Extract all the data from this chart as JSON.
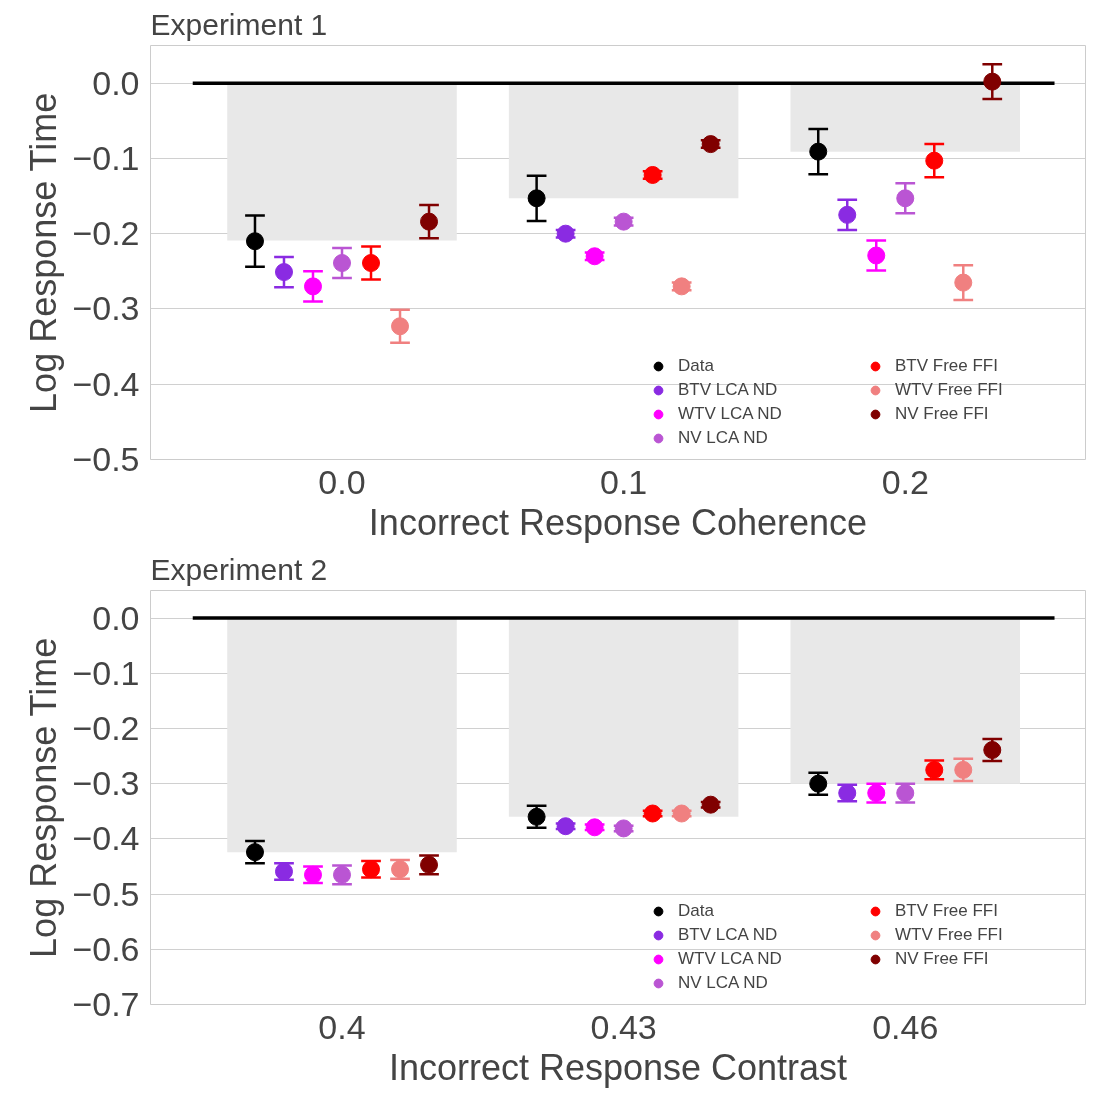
{
  "chart_data": [
    {
      "type": "bar",
      "title": "Experiment 1",
      "xlabel": "Incorrect Response Coherence",
      "ylabel": "Log Response Time",
      "categories": [
        "0.0",
        "0.1",
        "0.2"
      ],
      "ylim": [
        -0.5,
        0.05
      ],
      "yticks": [
        {
          "value": 0,
          "label": "0.0"
        },
        {
          "value": -0.1,
          "label": "−0.1"
        },
        {
          "value": -0.2,
          "label": "−0.2"
        },
        {
          "value": -0.3,
          "label": "−0.3"
        },
        {
          "value": -0.4,
          "label": "−0.4"
        },
        {
          "value": -0.5,
          "label": "−0.5"
        }
      ],
      "grid": "y",
      "legend": "bottom right",
      "marker": "circle",
      "ref_lines": [
        {
          "axis": "y",
          "value": 0,
          "color": "#000000"
        }
      ],
      "series": [
        {
          "color": "#e8e8e8",
          "values": [
            -0.209,
            -0.153,
            -0.091
          ]
        },
        {
          "type": "scatter",
          "name": "Data",
          "color": "#000000",
          "x": [
            "0.0",
            "0.1",
            "0.2"
          ],
          "values": [
            -0.21,
            -0.153,
            -0.091
          ],
          "errors": [
            0.034,
            0.03,
            0.03
          ]
        },
        {
          "type": "scatter",
          "name": "BTV LCA ND",
          "color": "#8a2be2",
          "x": [
            "0.0",
            "0.1",
            "0.2"
          ],
          "values": [
            -0.251,
            -0.2,
            -0.175
          ],
          "errors": [
            0.02,
            0.005,
            0.02
          ]
        },
        {
          "type": "scatter",
          "name": "WTV LCA ND",
          "color": "#ff00ff",
          "x": [
            "0.0",
            "0.1",
            "0.2"
          ],
          "values": [
            -0.27,
            -0.23,
            -0.229
          ],
          "errors": [
            0.02,
            0.005,
            0.02
          ]
        },
        {
          "type": "scatter",
          "name": "NV LCA ND",
          "color": "#ba55d3",
          "x": [
            "0.0",
            "0.1",
            "0.2"
          ],
          "values": [
            -0.239,
            -0.184,
            -0.153
          ],
          "errors": [
            0.02,
            0.005,
            0.02
          ]
        },
        {
          "type": "scatter",
          "name": "BTV Free FFI",
          "color": "#ff0000",
          "x": [
            "0.0",
            "0.1",
            "0.2"
          ],
          "values": [
            -0.239,
            -0.122,
            -0.103
          ],
          "errors": [
            0.022,
            0.005,
            0.022
          ]
        },
        {
          "type": "scatter",
          "name": "WTV Free FFI",
          "color": "#f08080",
          "x": [
            "0.0",
            "0.1",
            "0.2"
          ],
          "values": [
            -0.323,
            -0.27,
            -0.265
          ],
          "errors": [
            0.022,
            0.005,
            0.023
          ]
        },
        {
          "type": "scatter",
          "name": "NV Free FFI",
          "color": "#800000",
          "x": [
            "0.0",
            "0.1",
            "0.2"
          ],
          "values": [
            -0.184,
            -0.081,
            0.002
          ],
          "errors": [
            0.022,
            0.005,
            0.023
          ]
        }
      ]
    },
    {
      "type": "bar",
      "title": "Experiment 2",
      "xlabel": "Incorrect Response Contrast",
      "ylabel": "Log Response Time",
      "categories": [
        "0.4",
        "0.43",
        "0.46"
      ],
      "ylim": [
        -0.7,
        0.05
      ],
      "yticks": [
        {
          "value": 0,
          "label": "0.0"
        },
        {
          "value": -0.1,
          "label": "−0.1"
        },
        {
          "value": -0.2,
          "label": "−0.2"
        },
        {
          "value": -0.3,
          "label": "−0.3"
        },
        {
          "value": -0.4,
          "label": "−0.4"
        },
        {
          "value": -0.5,
          "label": "−0.5"
        },
        {
          "value": -0.6,
          "label": "−0.6"
        },
        {
          "value": -0.7,
          "label": "−0.7"
        }
      ],
      "grid": "y",
      "legend": "bottom right",
      "marker": "circle",
      "ref_lines": [
        {
          "axis": "y",
          "value": 0,
          "color": "#000000"
        }
      ],
      "series": [
        {
          "color": "#e8e8e8",
          "values": [
            -0.424,
            -0.36,
            -0.3
          ]
        },
        {
          "type": "scatter",
          "name": "Data",
          "color": "#000000",
          "x": [
            "0.4",
            "0.43",
            "0.46"
          ],
          "values": [
            -0.424,
            -0.36,
            -0.3
          ],
          "errors": [
            0.02,
            0.02,
            0.02
          ]
        },
        {
          "type": "scatter",
          "name": "BTV LCA ND",
          "color": "#8a2be2",
          "x": [
            "0.4",
            "0.43",
            "0.46"
          ],
          "values": [
            -0.459,
            -0.377,
            -0.317
          ],
          "errors": [
            0.015,
            0.005,
            0.015
          ]
        },
        {
          "type": "scatter",
          "name": "WTV LCA ND",
          "color": "#ff00ff",
          "x": [
            "0.4",
            "0.43",
            "0.46"
          ],
          "values": [
            -0.465,
            -0.379,
            -0.317
          ],
          "errors": [
            0.015,
            0.005,
            0.017
          ]
        },
        {
          "type": "scatter",
          "name": "NV LCA ND",
          "color": "#ba55d3",
          "x": [
            "0.4",
            "0.43",
            "0.46"
          ],
          "values": [
            -0.465,
            -0.381,
            -0.317
          ],
          "errors": [
            0.017,
            0.005,
            0.017
          ]
        },
        {
          "type": "scatter",
          "name": "BTV Free FFI",
          "color": "#ff0000",
          "x": [
            "0.4",
            "0.43",
            "0.46"
          ],
          "values": [
            -0.455,
            -0.354,
            -0.275
          ],
          "errors": [
            0.015,
            0.005,
            0.017
          ]
        },
        {
          "type": "scatter",
          "name": "WTV Free FFI",
          "color": "#f08080",
          "x": [
            "0.4",
            "0.43",
            "0.46"
          ],
          "values": [
            -0.455,
            -0.354,
            -0.275
          ],
          "errors": [
            0.017,
            0.005,
            0.02
          ]
        },
        {
          "type": "scatter",
          "name": "NV Free FFI",
          "color": "#800000",
          "x": [
            "0.4",
            "0.43",
            "0.46"
          ],
          "values": [
            -0.447,
            -0.338,
            -0.239
          ],
          "errors": [
            0.017,
            0.005,
            0.02
          ]
        }
      ]
    }
  ]
}
